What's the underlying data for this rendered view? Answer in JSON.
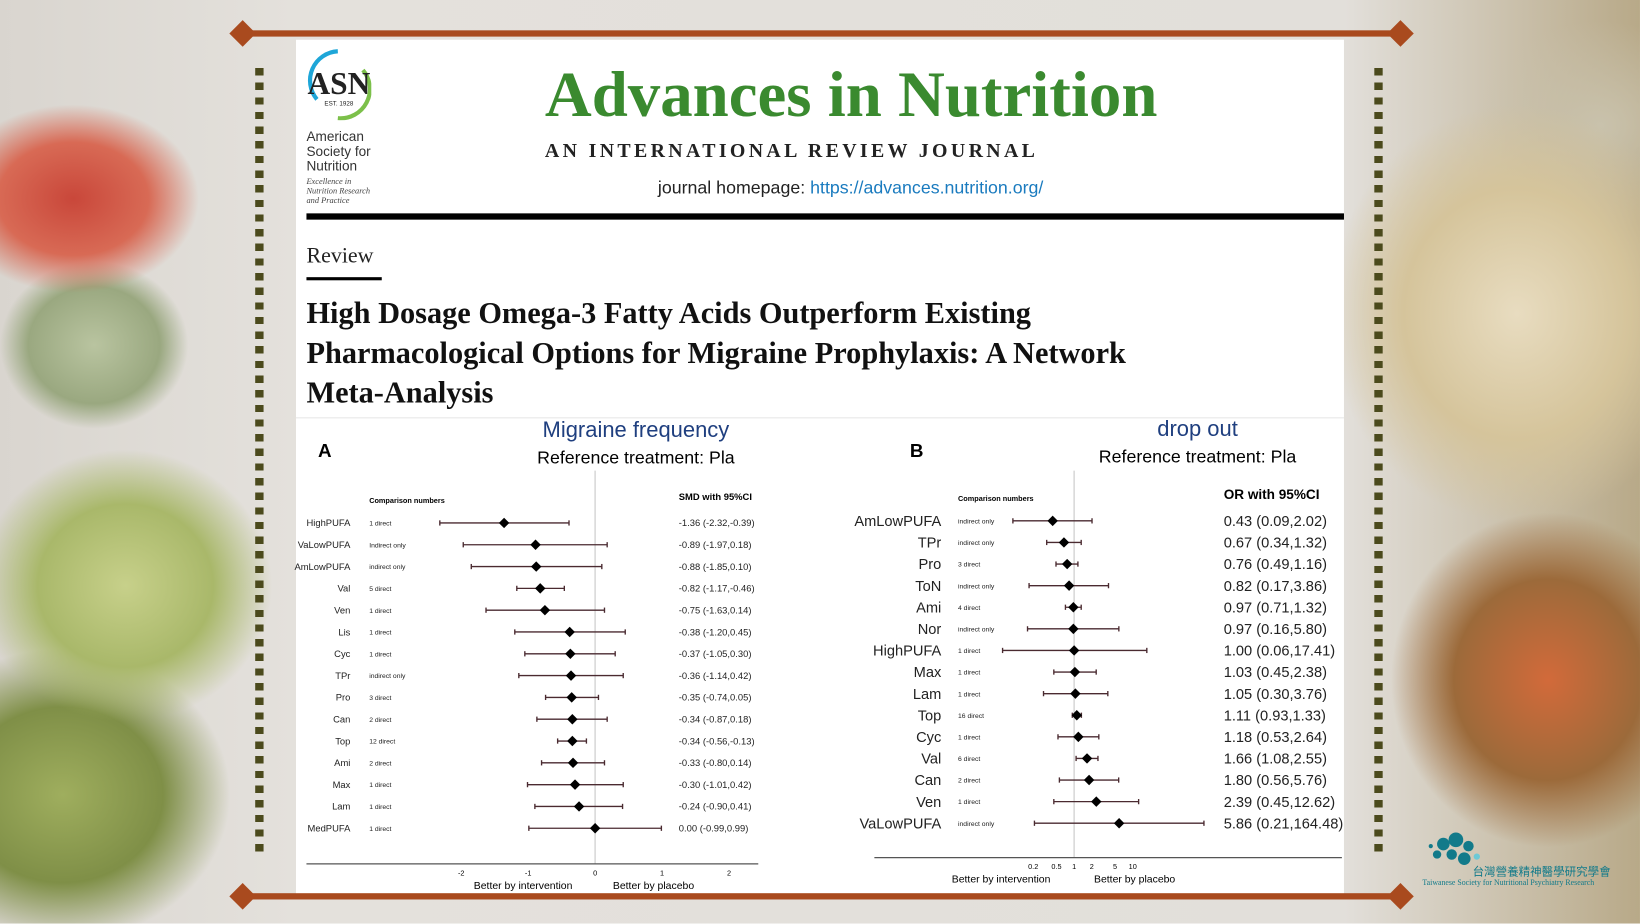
{
  "journal": {
    "logo": {
      "abbr": "ASN",
      "est": "EST. 1928",
      "org_lines": [
        "American",
        "Society for",
        "Nutrition"
      ],
      "tagline_lines": [
        "Excellence in",
        "Nutrition Research",
        "and Practice"
      ]
    },
    "title": "Advances in Nutrition",
    "subtitle": "AN INTERNATIONAL REVIEW JOURNAL",
    "homepage_label": "journal homepage:",
    "homepage_url": "https://advances.nutrition.org/",
    "title_color": "#3a8a2f"
  },
  "article": {
    "type": "Review",
    "title_lines": [
      "High Dosage Omega-3 Fatty Acids Outperform Existing",
      "Pharmacological Options for Migraine Prophylaxis: A Network",
      "Meta-Analysis"
    ]
  },
  "society_logo": {
    "text": "台灣營養精神醫學研究學會",
    "subtext": "Taiwanese Society for Nutritional Psychiatry Research"
  },
  "chart_data": [
    {
      "type": "forest",
      "panel": "A",
      "title": "Migraine frequency",
      "subtitle": "Reference treatment: Pla",
      "comparison_header": "Comparison numbers",
      "estimate_header": "SMD with 95%CI",
      "xscale": "linear",
      "xlim": [
        -2.7,
        2.5
      ],
      "xticks": [
        "-2",
        "-1",
        "0",
        "1",
        "2"
      ],
      "reference_line": 0,
      "xlabel_left": "Better by intervention",
      "xlabel_right": "Better by placebo",
      "rows": [
        {
          "treatment": "HighPUFA",
          "comparison": "1 direct",
          "est": -1.36,
          "lo": -2.32,
          "hi": -0.39,
          "label": "-1.36 (-2.32,-0.39)"
        },
        {
          "treatment": "VaLowPUFA",
          "comparison": "Indirect only",
          "est": -0.89,
          "lo": -1.97,
          "hi": 0.18,
          "label": "-0.89 (-1.97,0.18)"
        },
        {
          "treatment": "AmLowPUFA",
          "comparison": "indirect only",
          "est": -0.88,
          "lo": -1.85,
          "hi": 0.1,
          "label": "-0.88 (-1.85,0.10)"
        },
        {
          "treatment": "Val",
          "comparison": "5 direct",
          "est": -0.82,
          "lo": -1.17,
          "hi": -0.46,
          "label": "-0.82 (-1.17,-0.46)"
        },
        {
          "treatment": "Ven",
          "comparison": "1 direct",
          "est": -0.75,
          "lo": -1.63,
          "hi": 0.14,
          "label": "-0.75 (-1.63,0.14)"
        },
        {
          "treatment": "Lis",
          "comparison": "1 direct",
          "est": -0.38,
          "lo": -1.2,
          "hi": 0.45,
          "label": "-0.38 (-1.20,0.45)"
        },
        {
          "treatment": "Cyc",
          "comparison": "1 direct",
          "est": -0.37,
          "lo": -1.05,
          "hi": 0.3,
          "label": "-0.37 (-1.05,0.30)"
        },
        {
          "treatment": "TPr",
          "comparison": "indirect only",
          "est": -0.36,
          "lo": -1.14,
          "hi": 0.42,
          "label": "-0.36 (-1.14,0.42)"
        },
        {
          "treatment": "Pro",
          "comparison": "3 direct",
          "est": -0.35,
          "lo": -0.74,
          "hi": 0.05,
          "label": "-0.35 (-0.74,0.05)"
        },
        {
          "treatment": "Can",
          "comparison": "2 direct",
          "est": -0.34,
          "lo": -0.87,
          "hi": 0.18,
          "label": "-0.34 (-0.87,0.18)"
        },
        {
          "treatment": "Top",
          "comparison": "12 direct",
          "est": -0.34,
          "lo": -0.56,
          "hi": -0.13,
          "label": "-0.34 (-0.56,-0.13)"
        },
        {
          "treatment": "Ami",
          "comparison": "2 direct",
          "est": -0.33,
          "lo": -0.8,
          "hi": 0.14,
          "label": "-0.33 (-0.80,0.14)"
        },
        {
          "treatment": "Max",
          "comparison": "1 direct",
          "est": -0.3,
          "lo": -1.01,
          "hi": 0.42,
          "label": "-0.30 (-1.01,0.42)"
        },
        {
          "treatment": "Lam",
          "comparison": "1 direct",
          "est": -0.24,
          "lo": -0.9,
          "hi": 0.41,
          "label": "-0.24 (-0.90,0.41)"
        },
        {
          "treatment": "MedPUFA",
          "comparison": "1 direct",
          "est": 0.0,
          "lo": -0.99,
          "hi": 0.99,
          "label": "0.00 (-0.99,0.99)"
        }
      ]
    },
    {
      "type": "forest",
      "panel": "B",
      "title": "drop out",
      "subtitle": "Reference treatment: Pla",
      "comparison_header": "Comparison numbers",
      "estimate_header": "OR with 95%CI",
      "xscale": "log",
      "xticks": [
        "0.2",
        "0.5",
        "1",
        "2",
        "5",
        "10"
      ],
      "reference_line": 1,
      "xlabel_left": "Better by intervention",
      "xlabel_right": "Better by placebo",
      "rows": [
        {
          "treatment": "AmLowPUFA",
          "comparison": "indirect only",
          "est": 0.43,
          "lo": 0.09,
          "hi": 2.02,
          "label": "0.43 (0.09,2.02)"
        },
        {
          "treatment": "TPr",
          "comparison": "indirect only",
          "est": 0.67,
          "lo": 0.34,
          "hi": 1.32,
          "label": "0.67 (0.34,1.32)"
        },
        {
          "treatment": "Pro",
          "comparison": "3 direct",
          "est": 0.76,
          "lo": 0.49,
          "hi": 1.16,
          "label": "0.76 (0.49,1.16)"
        },
        {
          "treatment": "ToN",
          "comparison": "indirect only",
          "est": 0.82,
          "lo": 0.17,
          "hi": 3.86,
          "label": "0.82 (0.17,3.86)"
        },
        {
          "treatment": "Ami",
          "comparison": "4 direct",
          "est": 0.97,
          "lo": 0.71,
          "hi": 1.32,
          "label": "0.97 (0.71,1.32)"
        },
        {
          "treatment": "Nor",
          "comparison": "indirect only",
          "est": 0.97,
          "lo": 0.16,
          "hi": 5.8,
          "label": "0.97 (0.16,5.80)"
        },
        {
          "treatment": "HighPUFA",
          "comparison": "1 direct",
          "est": 1.0,
          "lo": 0.06,
          "hi": 17.41,
          "label": "1.00 (0.06,17.41)"
        },
        {
          "treatment": "Max",
          "comparison": "1 direct",
          "est": 1.03,
          "lo": 0.45,
          "hi": 2.38,
          "label": "1.03 (0.45,2.38)"
        },
        {
          "treatment": "Lam",
          "comparison": "1 direct",
          "est": 1.05,
          "lo": 0.3,
          "hi": 3.76,
          "label": "1.05 (0.30,3.76)"
        },
        {
          "treatment": "Top",
          "comparison": "16 direct",
          "est": 1.11,
          "lo": 0.93,
          "hi": 1.33,
          "label": "1.11 (0.93,1.33)"
        },
        {
          "treatment": "Cyc",
          "comparison": "1 direct",
          "est": 1.18,
          "lo": 0.53,
          "hi": 2.64,
          "label": "1.18 (0.53,2.64)"
        },
        {
          "treatment": "Val",
          "comparison": "6 direct",
          "est": 1.66,
          "lo": 1.08,
          "hi": 2.55,
          "label": "1.66 (1.08,2.55)"
        },
        {
          "treatment": "Can",
          "comparison": "2 direct",
          "est": 1.8,
          "lo": 0.56,
          "hi": 5.76,
          "label": "1.80 (0.56,5.76)"
        },
        {
          "treatment": "Ven",
          "comparison": "1 direct",
          "est": 2.39,
          "lo": 0.45,
          "hi": 12.62,
          "label": "2.39 (0.45,12.62)"
        },
        {
          "treatment": "VaLowPUFA",
          "comparison": "indirect only",
          "est": 5.86,
          "lo": 0.21,
          "hi": 164.48,
          "label": "5.86 (0.21,164.48)"
        }
      ]
    }
  ]
}
